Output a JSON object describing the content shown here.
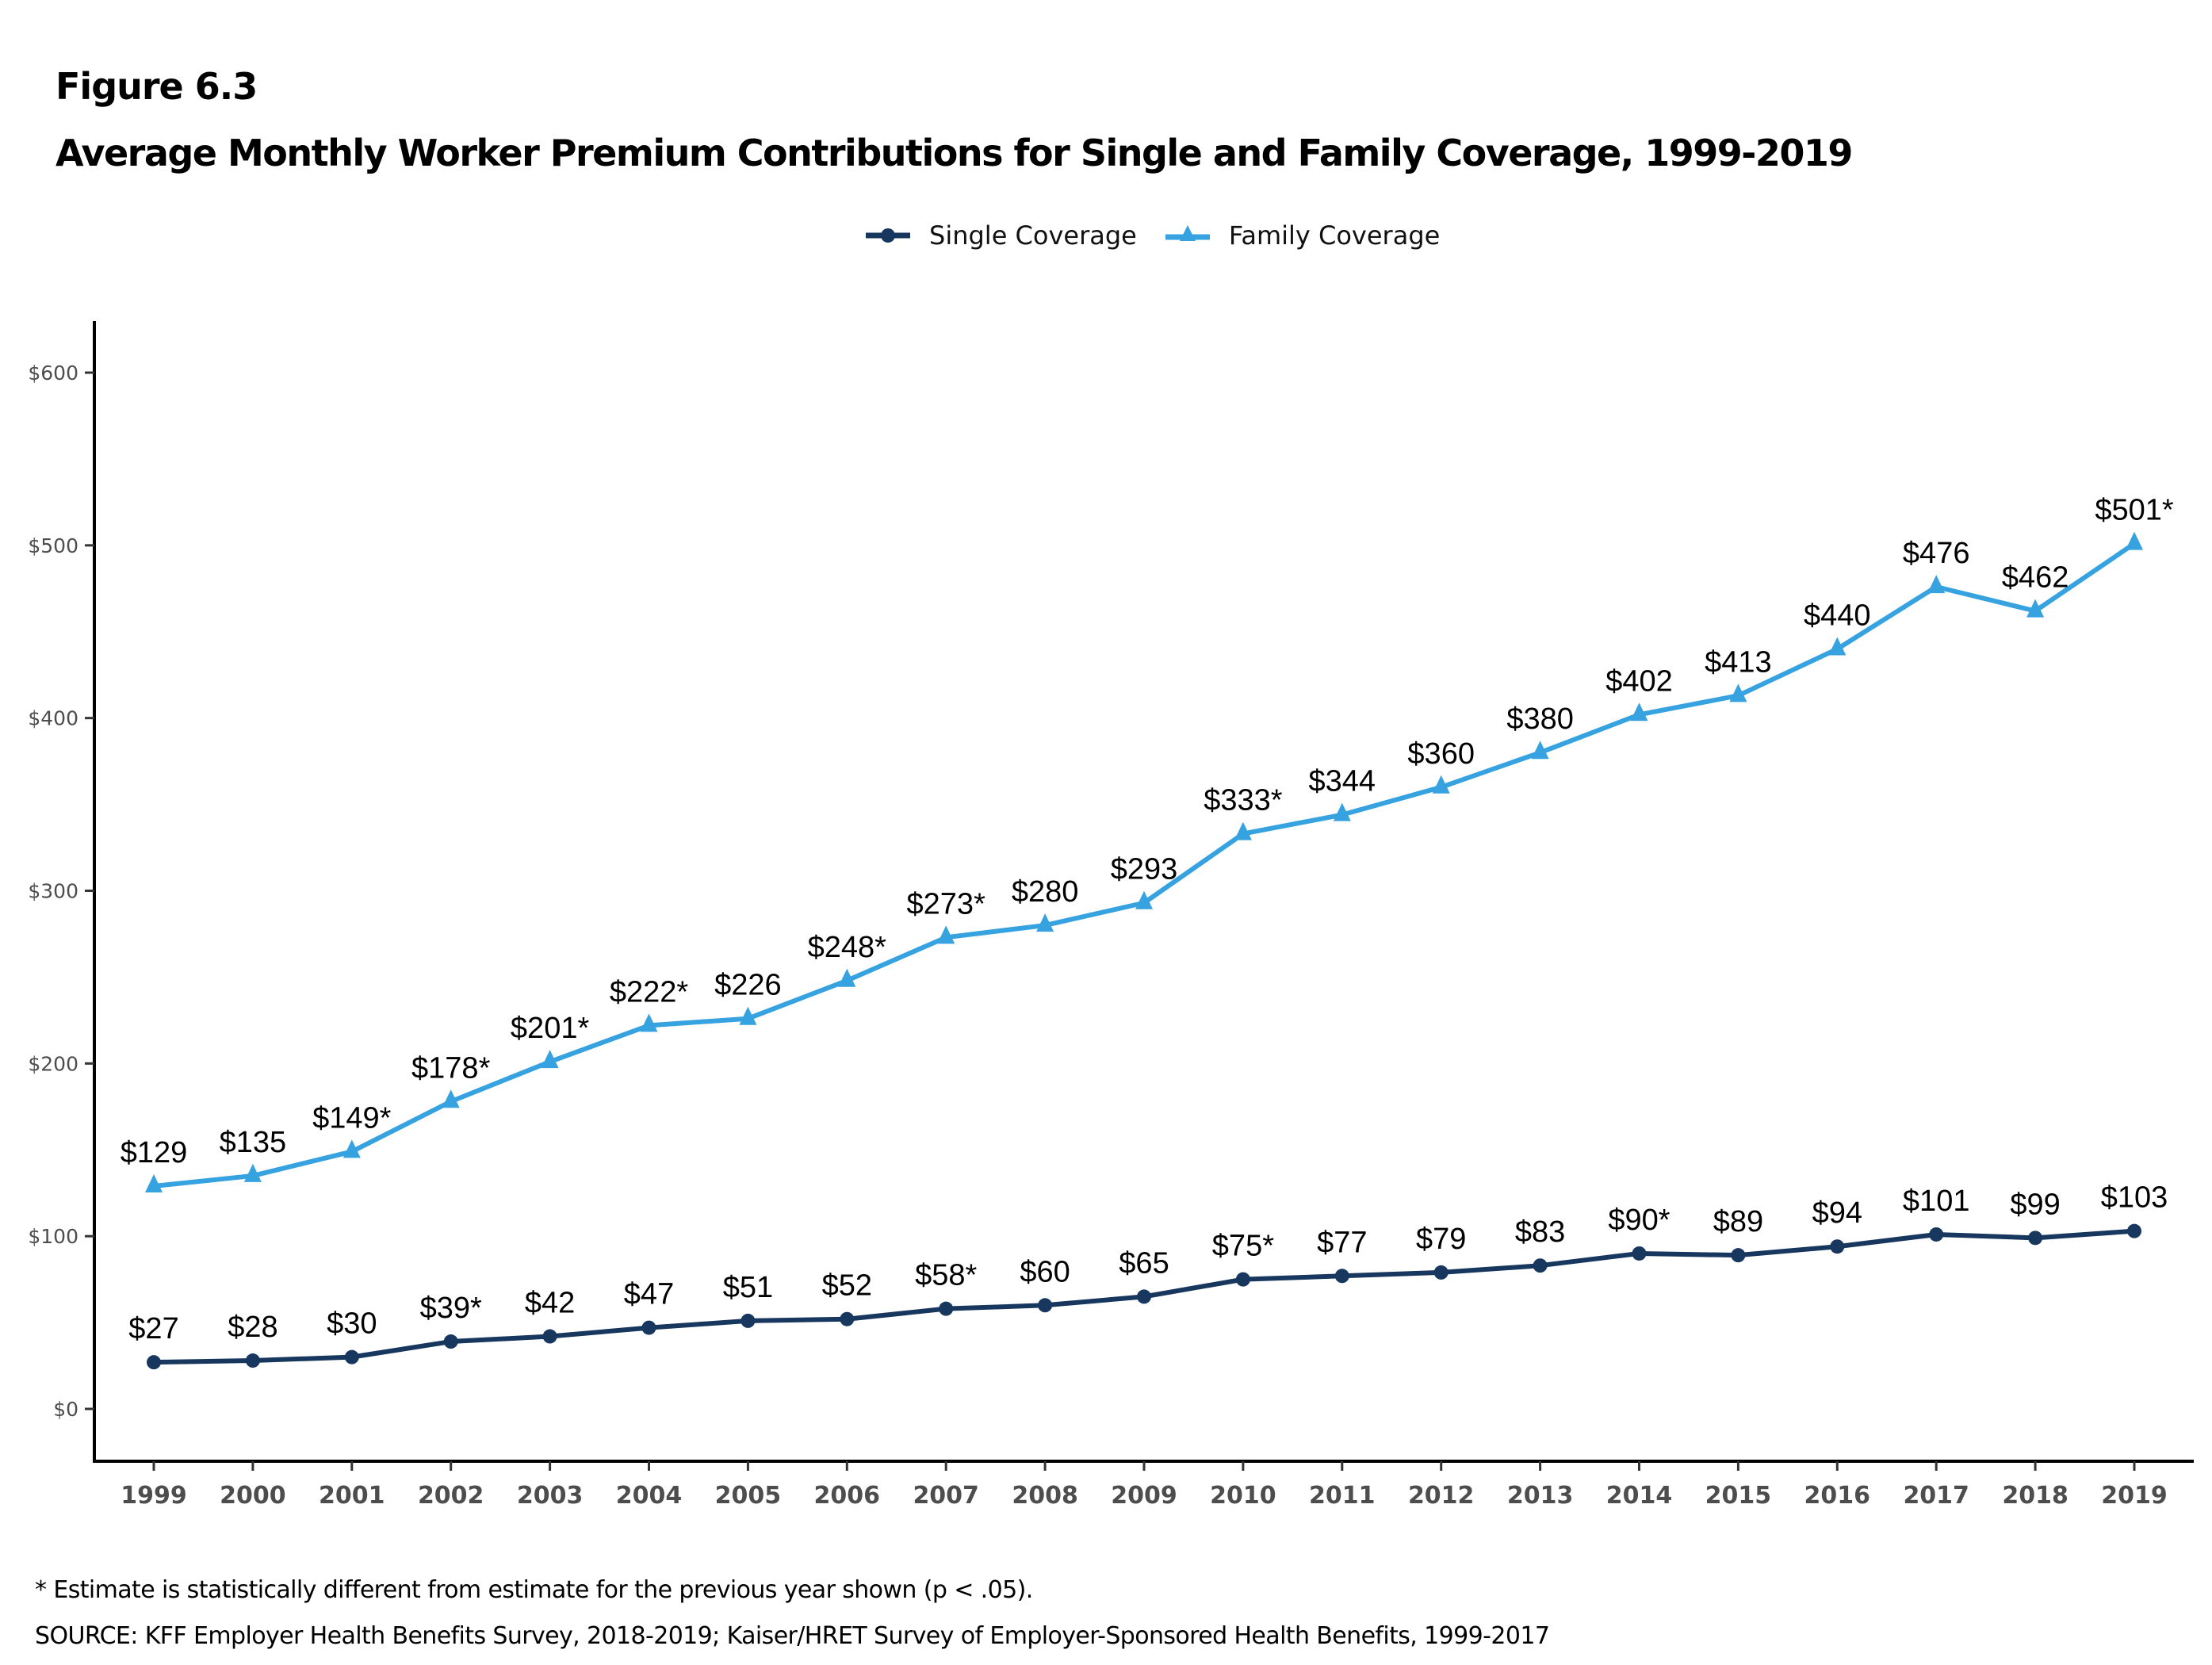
{
  "figure_label": "Figure 6.3",
  "title": "Average Monthly Worker Premium Contributions for Single and Family Coverage, 1999-2019",
  "legend": [
    {
      "name": "Single Coverage",
      "color": "#17375e",
      "marker": "circle"
    },
    {
      "name": "Family Coverage",
      "color": "#36a2e0",
      "marker": "triangle"
    }
  ],
  "footnotes": {
    "significance": "* Estimate is statistically different from estimate for the previous year shown (p < .05).",
    "source": "SOURCE: KFF Employer Health Benefits Survey, 2018-2019; Kaiser/HRET Survey of Employer-Sponsored Health Benefits, 1999-2017"
  },
  "chart_data": {
    "type": "line",
    "title": "Average Monthly Worker Premium Contributions for Single and Family Coverage, 1999-2019",
    "xlabel": "",
    "ylabel": "",
    "ylim": [
      0,
      600
    ],
    "yticks": [
      0,
      100,
      200,
      300,
      400,
      500,
      600
    ],
    "ytick_labels": [
      "$0",
      "$100",
      "$200",
      "$300",
      "$400",
      "$500",
      "$600"
    ],
    "grid": false,
    "legend_position": "top-center",
    "categories": [
      "1999",
      "2000",
      "2001",
      "2002",
      "2003",
      "2004",
      "2005",
      "2006",
      "2007",
      "2008",
      "2009",
      "2010",
      "2011",
      "2012",
      "2013",
      "2014",
      "2015",
      "2016",
      "2017",
      "2018",
      "2019"
    ],
    "series": [
      {
        "name": "Single Coverage",
        "color": "#17375e",
        "marker": "circle",
        "values": [
          27,
          28,
          30,
          39,
          42,
          47,
          51,
          52,
          58,
          60,
          65,
          75,
          77,
          79,
          83,
          90,
          89,
          94,
          101,
          99,
          103
        ],
        "labels": [
          "$27",
          "$28",
          "$30",
          "$39*",
          "$42",
          "$47",
          "$51",
          "$52",
          "$58*",
          "$60",
          "$65",
          "$75*",
          "$77",
          "$79",
          "$83",
          "$90*",
          "$89",
          "$94",
          "$101",
          "$99",
          "$103"
        ]
      },
      {
        "name": "Family Coverage",
        "color": "#36a2e0",
        "marker": "triangle",
        "values": [
          129,
          135,
          149,
          178,
          201,
          222,
          226,
          248,
          273,
          280,
          293,
          333,
          344,
          360,
          380,
          402,
          413,
          440,
          476,
          462,
          501
        ],
        "labels": [
          "$129",
          "$135",
          "$149*",
          "$178*",
          "$201*",
          "$222*",
          "$226",
          "$248*",
          "$273*",
          "$280",
          "$293",
          "$333*",
          "$344",
          "$360",
          "$380",
          "$402",
          "$413",
          "$440",
          "$476",
          "$462",
          "$501*"
        ]
      }
    ]
  }
}
